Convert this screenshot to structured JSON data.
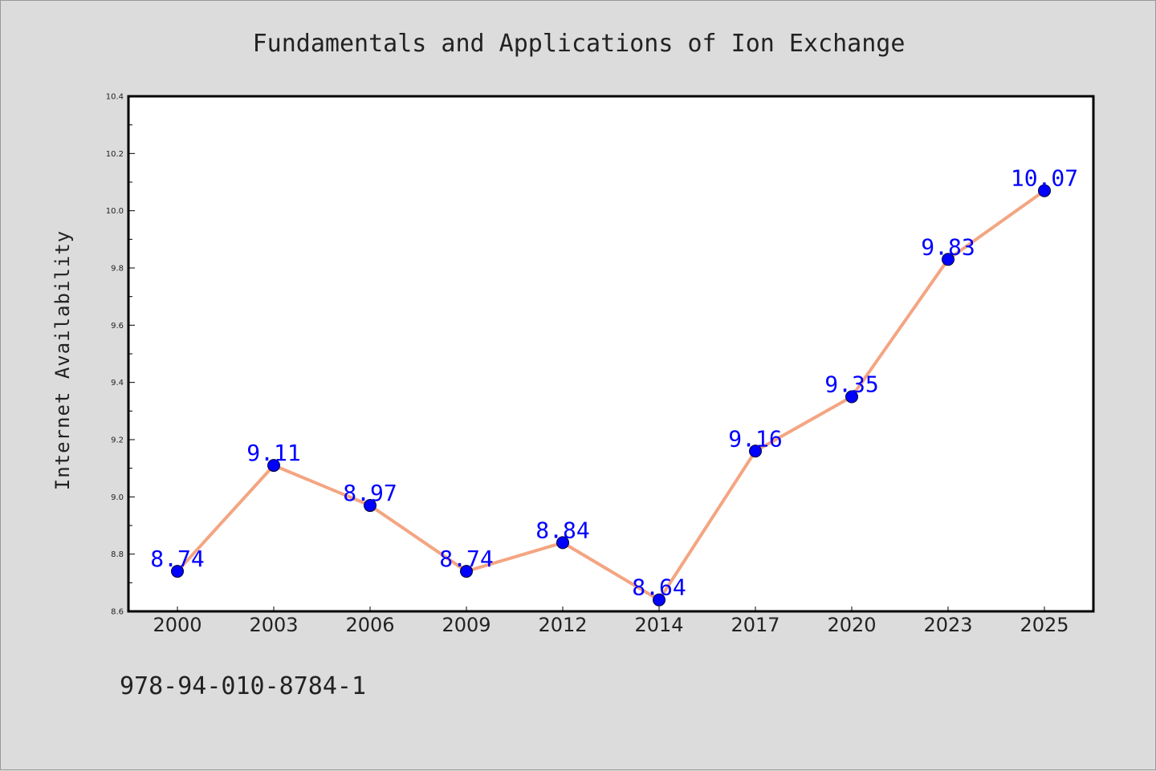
{
  "chart_data": {
    "type": "line",
    "title": "Fundamentals and Applications of Ion Exchange",
    "xlabel": "",
    "ylabel": "Internet Availability",
    "categories": [
      "2000",
      "2003",
      "2006",
      "2009",
      "2012",
      "2014",
      "2017",
      "2020",
      "2023",
      "2025"
    ],
    "series": [
      {
        "values": [
          8.74,
          9.11,
          8.97,
          8.74,
          8.84,
          8.64,
          9.16,
          9.35,
          9.83,
          10.07
        ],
        "data_labels": [
          "8.74",
          "9.11",
          "8.97",
          "8.74",
          "8.84",
          "8.64",
          "9.16",
          "9.35",
          "9.83",
          "10.07"
        ],
        "line_color": "#f4a582",
        "marker_color": "#0000ff"
      }
    ],
    "ylim": [
      8.6,
      10.4
    ],
    "yticks": [
      8.6,
      8.8,
      9.0,
      9.2,
      9.4,
      9.6,
      9.8,
      10.0,
      10.2,
      10.4
    ],
    "ytick_labels": [
      "8.6",
      "8.8",
      "9.0",
      "9.2",
      "9.4",
      "9.6",
      "9.8",
      "10.0",
      "10.2",
      "10.4"
    ],
    "grid": false,
    "legend": "none",
    "data_label_color": "#0000ff",
    "background_color": "#dcdcdc",
    "plot_background_color": "#ffffff"
  },
  "footnote": "978-94-010-8784-1"
}
